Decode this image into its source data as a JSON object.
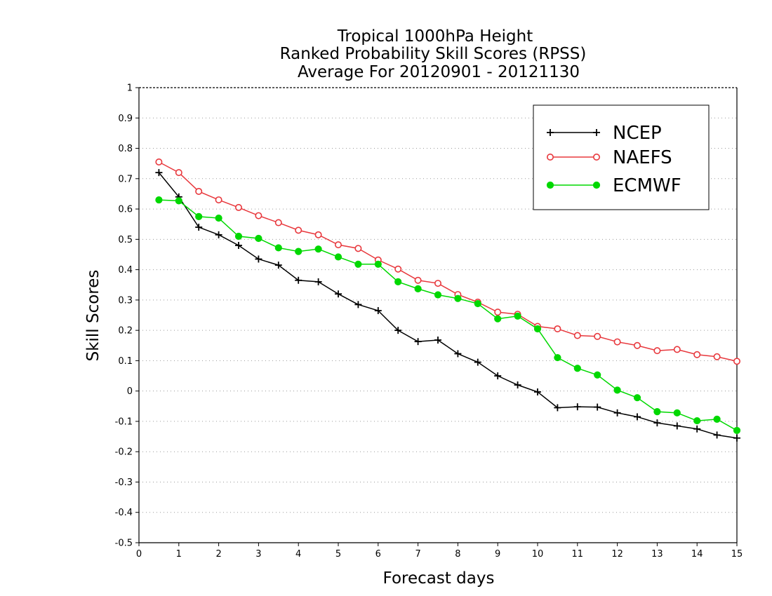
{
  "chart_data": {
    "type": "line",
    "title": [
      "Tropical 1000hPa Height",
      "Ranked Probability Skill Scores (RPSS)",
      "Average For 20120901 - 20121130"
    ],
    "xlabel": "Forecast days",
    "ylabel": "Skill Scores",
    "xlim": [
      0,
      15
    ],
    "ylim": [
      -0.5,
      1
    ],
    "xticks": [
      0,
      1,
      2,
      3,
      4,
      5,
      6,
      7,
      8,
      9,
      10,
      11,
      12,
      13,
      14,
      15
    ],
    "yticks": [
      -0.5,
      -0.4,
      -0.3,
      -0.2,
      -0.1,
      0,
      0.1,
      0.2,
      0.3,
      0.4,
      0.5,
      0.6,
      0.7,
      0.8,
      0.9,
      1
    ],
    "grid": "horizontal dotted",
    "legend_position": "top-right",
    "x": [
      0.5,
      1,
      1.5,
      2,
      2.5,
      3,
      3.5,
      4,
      4.5,
      5,
      5.5,
      6,
      6.5,
      7,
      7.5,
      8,
      8.5,
      9,
      9.5,
      10,
      10.5,
      11,
      11.5,
      12,
      12.5,
      13,
      13.5,
      14,
      14.5,
      15
    ],
    "series": [
      {
        "name": "NCEP",
        "color": "#000000",
        "marker": "plus",
        "values": [
          0.72,
          0.64,
          0.54,
          0.515,
          0.48,
          0.435,
          0.415,
          0.365,
          0.36,
          0.32,
          0.285,
          0.265,
          0.2,
          0.163,
          0.168,
          0.123,
          0.095,
          0.05,
          0.02,
          -0.003,
          -0.055,
          -0.052,
          -0.053,
          -0.072,
          -0.085,
          -0.105,
          -0.115,
          -0.125,
          -0.145,
          -0.155
        ]
      },
      {
        "name": "NAEFS",
        "color": "#e8383d",
        "marker": "open-circle",
        "values": [
          0.755,
          0.72,
          0.658,
          0.63,
          0.605,
          0.578,
          0.555,
          0.53,
          0.515,
          0.482,
          0.47,
          0.432,
          0.402,
          0.365,
          0.355,
          0.318,
          0.293,
          0.26,
          0.253,
          0.213,
          0.205,
          0.183,
          0.18,
          0.162,
          0.15,
          0.133,
          0.137,
          0.12,
          0.113,
          0.098
        ]
      },
      {
        "name": "ECMWF",
        "color": "#00d800",
        "marker": "filled-circle",
        "values": [
          0.63,
          0.627,
          0.575,
          0.57,
          0.51,
          0.503,
          0.472,
          0.46,
          0.468,
          0.442,
          0.418,
          0.418,
          0.36,
          0.337,
          0.317,
          0.305,
          0.288,
          0.238,
          0.247,
          0.205,
          0.11,
          0.075,
          0.053,
          0.003,
          -0.022,
          -0.068,
          -0.072,
          -0.098,
          -0.093,
          -0.13
        ]
      }
    ]
  }
}
